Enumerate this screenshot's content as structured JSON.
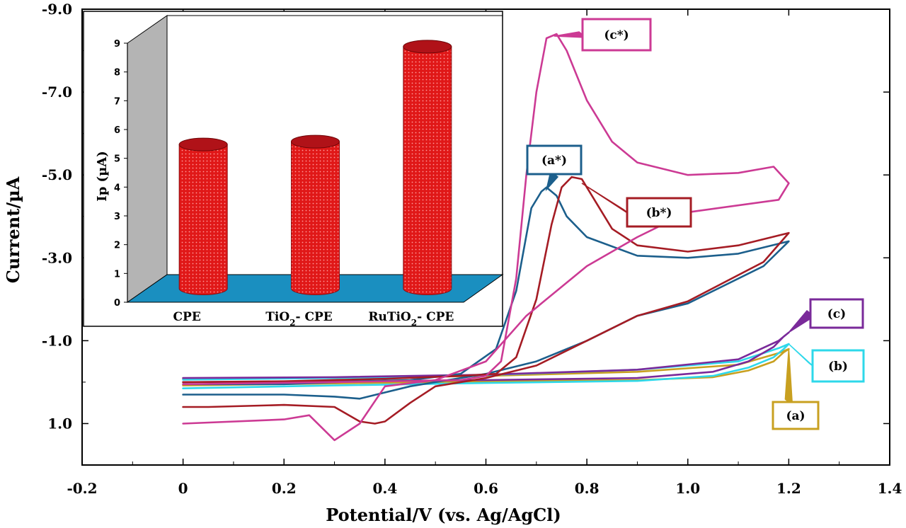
{
  "chart_data": [
    {
      "type": "line",
      "title": "",
      "xlabel": "Potential/V (vs. Ag/AgCl)",
      "ylabel": "Current/µA",
      "xlim": [
        -0.2,
        1.4
      ],
      "ylim": [
        2.0,
        -9.0
      ],
      "x_ticks": [
        -0.2,
        0,
        0.2,
        0.4,
        0.6,
        0.8,
        1.0,
        1.2,
        1.4
      ],
      "x_tick_labels": [
        "-0.2",
        "0",
        "0.2",
        "0.4",
        "0.6",
        "0.8",
        "1.0",
        "1.2",
        "1.4"
      ],
      "y_ticks": [
        -9.0,
        -7.0,
        -5.0,
        -3.0,
        -1.0,
        1.0
      ],
      "y_tick_labels": [
        "-9.0",
        "-7.0",
        "-5.0",
        "-3.0",
        "-1.0",
        "1.0"
      ],
      "grid": false,
      "series": [
        {
          "name": "(a)",
          "color": "#c8a020",
          "x": [
            0.0,
            0.3,
            0.6,
            0.9,
            1.05,
            1.12,
            1.17,
            1.19,
            1.2,
            1.18,
            1.1,
            0.9,
            0.6,
            0.3,
            0.0
          ],
          "y": [
            0.08,
            0.03,
            -0.02,
            -0.05,
            -0.12,
            -0.28,
            -0.5,
            -0.72,
            -0.8,
            -0.7,
            -0.42,
            -0.25,
            -0.15,
            -0.1,
            -0.08
          ]
        },
        {
          "name": "(b)",
          "color": "#2ed8ea",
          "x": [
            0.0,
            0.3,
            0.6,
            0.9,
            1.05,
            1.12,
            1.17,
            1.19,
            1.2,
            1.18,
            1.1,
            0.9,
            0.6,
            0.3,
            0.0
          ],
          "y": [
            0.15,
            0.08,
            0.02,
            -0.03,
            -0.15,
            -0.35,
            -0.6,
            -0.8,
            -0.92,
            -0.82,
            -0.5,
            -0.3,
            -0.17,
            -0.1,
            -0.06
          ]
        },
        {
          "name": "(c)",
          "color": "#7a2a9a",
          "x": [
            0.0,
            0.3,
            0.6,
            0.9,
            1.05,
            1.12,
            1.17,
            1.19,
            1.2,
            1.18,
            1.1,
            0.9,
            0.6,
            0.3,
            0.0
          ],
          "y": [
            0.0,
            -0.02,
            -0.05,
            -0.1,
            -0.25,
            -0.5,
            -0.85,
            -1.1,
            -1.2,
            -1.0,
            -0.55,
            -0.3,
            -0.18,
            -0.12,
            -0.1
          ]
        },
        {
          "name": "(a*)",
          "color": "#1c5f8c",
          "x": [
            0.0,
            0.2,
            0.35,
            0.45,
            0.55,
            0.62,
            0.66,
            0.69,
            0.71,
            0.72,
            0.74,
            0.76,
            0.8,
            0.9,
            1.0,
            1.1,
            1.2,
            1.15,
            1.0,
            0.9,
            0.8,
            0.7,
            0.6,
            0.5,
            0.45,
            0.4,
            0.35,
            0.3,
            0.2,
            0.0
          ],
          "y": [
            0.05,
            0.05,
            -0.02,
            -0.05,
            -0.2,
            -0.8,
            -2.2,
            -4.2,
            -4.6,
            -4.7,
            -4.5,
            -4.0,
            -3.5,
            -3.05,
            -3.0,
            -3.1,
            -3.4,
            -2.8,
            -1.9,
            -1.6,
            -1.0,
            -0.5,
            -0.2,
            0.0,
            0.1,
            0.25,
            0.4,
            0.35,
            0.3,
            0.3
          ]
        },
        {
          "name": "(b*)",
          "color": "#a51c24",
          "x": [
            0.0,
            0.2,
            0.4,
            0.55,
            0.62,
            0.66,
            0.7,
            0.73,
            0.75,
            0.77,
            0.79,
            0.82,
            0.85,
            0.9,
            1.0,
            1.1,
            1.2,
            1.15,
            1.0,
            0.9,
            0.8,
            0.7,
            0.6,
            0.5,
            0.45,
            0.4,
            0.38,
            0.35,
            0.3,
            0.2,
            0.05,
            0.0
          ],
          "y": [
            0.0,
            -0.02,
            -0.08,
            -0.15,
            -0.2,
            -0.6,
            -2.0,
            -3.8,
            -4.7,
            -4.95,
            -4.9,
            -4.3,
            -3.7,
            -3.3,
            -3.15,
            -3.3,
            -3.6,
            -2.9,
            -1.95,
            -1.6,
            -1.0,
            -0.4,
            -0.1,
            0.1,
            0.5,
            0.95,
            1.0,
            0.95,
            0.6,
            0.55,
            0.6,
            0.6
          ]
        },
        {
          "name": "(c*)",
          "color": "#cc3a94",
          "x": [
            0.0,
            0.3,
            0.55,
            0.6,
            0.63,
            0.66,
            0.68,
            0.7,
            0.72,
            0.74,
            0.76,
            0.8,
            0.85,
            0.9,
            1.0,
            1.1,
            1.17,
            1.2,
            1.18,
            1.0,
            0.9,
            0.8,
            0.72,
            0.68,
            0.6,
            0.5,
            0.4,
            0.35,
            0.3,
            0.25,
            0.2,
            0.0
          ],
          "y": [
            0.05,
            0.0,
            -0.05,
            -0.15,
            -0.5,
            -2.5,
            -5.0,
            -7.0,
            -8.3,
            -8.4,
            -8.0,
            -6.8,
            -5.8,
            -5.3,
            -5.0,
            -5.05,
            -5.2,
            -4.8,
            -4.4,
            -4.1,
            -3.5,
            -2.8,
            -2.0,
            -1.6,
            -0.5,
            -0.05,
            0.1,
            1.0,
            1.4,
            0.8,
            0.9,
            1.0
          ]
        }
      ],
      "annotations": [
        "(a)",
        "(b)",
        "(c)",
        "(a*)",
        "(b*)",
        "(c*)"
      ]
    },
    {
      "type": "bar",
      "title": "",
      "xlabel": "",
      "ylabel": "Ip (µA)",
      "ylim": [
        0,
        9
      ],
      "y_ticks": [
        0,
        1,
        2,
        3,
        4,
        5,
        6,
        7,
        8,
        9
      ],
      "categories": [
        "CPE",
        "TiO2- CPE",
        "RuTiO2- CPE"
      ],
      "values": [
        5.0,
        5.1,
        8.4
      ],
      "bar_style": "3d-cylinder",
      "bar_color": "#e01818",
      "floor_color": "#1a8fc0",
      "wall_color": "#b4b4b4"
    }
  ]
}
